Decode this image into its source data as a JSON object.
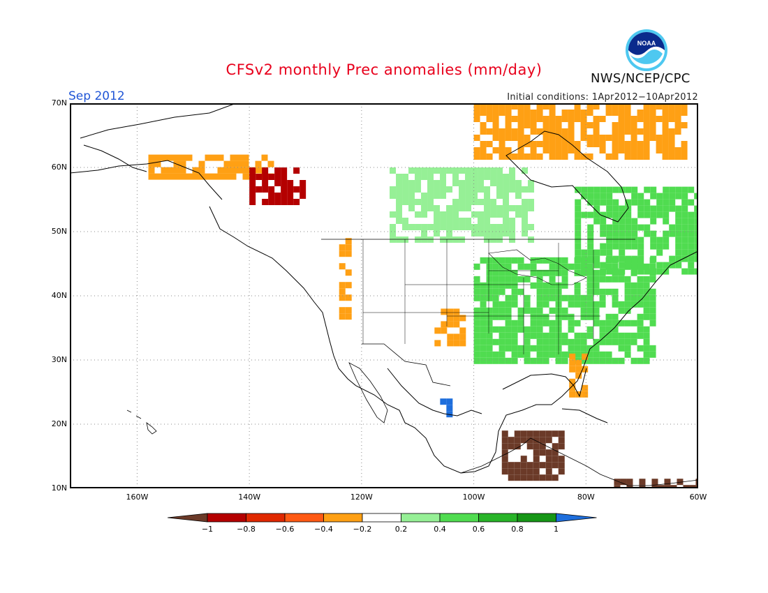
{
  "title": "CFSv2 monthly Prec anomalies (mm/day)",
  "month_label": "Sep 2012",
  "initial_conditions": "Initial conditions: 1Apr2012−10Apr2012",
  "agency": "NWS/NCEP/CPC",
  "logo_text": "NOAA",
  "map": {
    "lon_range": [
      -172,
      -60
    ],
    "lat_range": [
      10,
      70
    ],
    "lat_ticks": [
      {
        "value": 70,
        "label": "70N"
      },
      {
        "value": 60,
        "label": "60N"
      },
      {
        "value": 50,
        "label": "50N"
      },
      {
        "value": 40,
        "label": "40N"
      },
      {
        "value": 30,
        "label": "30N"
      },
      {
        "value": 20,
        "label": "20N"
      },
      {
        "value": 10,
        "label": "10N"
      }
    ],
    "lon_ticks": [
      {
        "value": -160,
        "label": "160W"
      },
      {
        "value": -140,
        "label": "140W"
      },
      {
        "value": -120,
        "label": "120W"
      },
      {
        "value": -100,
        "label": "100W"
      },
      {
        "value": -80,
        "label": "80W"
      },
      {
        "value": -60,
        "label": "60W"
      }
    ],
    "anomaly_patches": [
      {
        "region": "Alaska south coast",
        "class": "dry",
        "lon": [
          -158,
          -136
        ],
        "lat": [
          59,
          62
        ]
      },
      {
        "region": "Alaska panhandle",
        "class": "very-dry",
        "lon": [
          -140,
          -130
        ],
        "lat": [
          55,
          60
        ]
      },
      {
        "region": "Pacific Northwest coast",
        "class": "dry",
        "lon": [
          -124,
          -122
        ],
        "lat": [
          37,
          49
        ]
      },
      {
        "region": "Southern Rockies",
        "class": "dry",
        "lon": [
          -107,
          -102
        ],
        "lat": [
          33,
          38
        ]
      },
      {
        "region": "Eastern United States",
        "class": "wet",
        "lon": [
          -100,
          -68
        ],
        "lat": [
          30,
          46
        ]
      },
      {
        "region": "Eastern Canada",
        "class": "wet",
        "lon": [
          -82,
          -60
        ],
        "lat": [
          44,
          57
        ]
      },
      {
        "region": "Canadian Prairies",
        "class": "slightly-wet",
        "lon": [
          -115,
          -90
        ],
        "lat": [
          49,
          60
        ]
      },
      {
        "region": "Florida",
        "class": "dry",
        "lon": [
          -83,
          -80
        ],
        "lat": [
          25,
          31
        ]
      },
      {
        "region": "Central America",
        "class": "extreme-dry",
        "lon": [
          -95,
          -84
        ],
        "lat": [
          12,
          19
        ]
      },
      {
        "region": "Western Mexico",
        "class": "extreme-wet",
        "lon": [
          -106,
          -104
        ],
        "lat": [
          22,
          24
        ]
      },
      {
        "region": "Arctic Canada",
        "class": "dry",
        "lon": [
          -100,
          -62
        ],
        "lat": [
          62,
          70
        ]
      },
      {
        "region": "Northern South America",
        "class": "extreme-dry",
        "lon": [
          -75,
          -60
        ],
        "lat": [
          10,
          11.5
        ]
      }
    ]
  },
  "colorbar": {
    "labels": [
      "−1",
      "−0.8",
      "−0.6",
      "−0.4",
      "−0.2",
      "0.2",
      "0.4",
      "0.6",
      "0.8",
      "1"
    ],
    "colors": [
      "#6b3a28",
      "#b40000",
      "#e02800",
      "#ff5a14",
      "#ffa014",
      "#ffffff",
      "#96f096",
      "#50dc50",
      "#28b428",
      "#169616",
      "#1e6edc"
    ]
  }
}
